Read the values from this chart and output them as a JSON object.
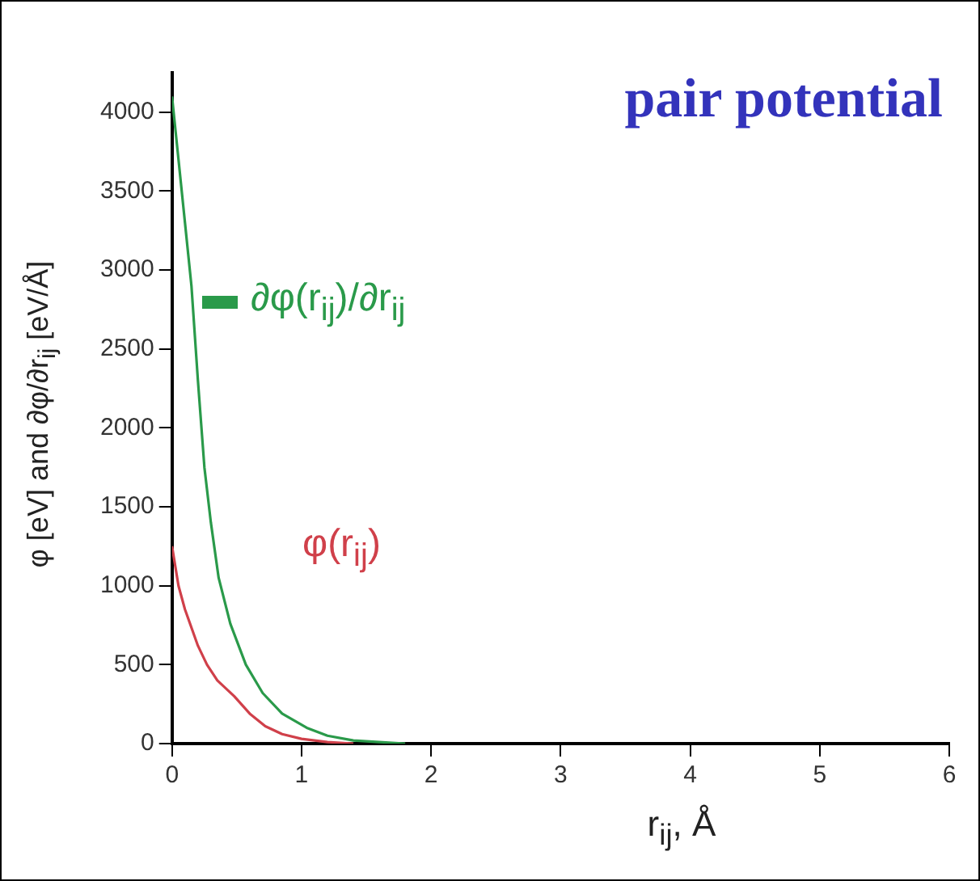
{
  "chart_data": {
    "type": "line",
    "title": "pair potential",
    "xlabel": "r$_{ij}$, Å",
    "ylabel": "φ [eV] and ∂φ/∂r$_{ij}$ [eV/Å]",
    "xlim": [
      0,
      6
    ],
    "xticks": [
      0,
      1,
      2,
      3,
      4,
      5,
      6
    ],
    "ylim": [
      0,
      4250
    ],
    "yticks": [
      0,
      500,
      1000,
      1500,
      2000,
      2500,
      3000,
      3500,
      4000
    ],
    "grid": false,
    "legend": "top left",
    "marker": "none",
    "line_style": "solid",
    "series": [
      {
        "name": "∂φ(r$_{ij}$)/∂r$_{ij}$",
        "color": "#2a9a4a",
        "x": [
          0,
          0.05,
          0.1,
          0.15,
          0.2,
          0.25,
          0.3,
          0.36,
          0.45,
          0.57,
          0.7,
          0.85,
          1.04,
          1.2,
          1.4,
          1.6,
          1.8
        ],
        "values": [
          4100,
          3700,
          3300,
          2900,
          2300,
          1750,
          1400,
          1050,
          760,
          500,
          320,
          190,
          100,
          50,
          20,
          10,
          0
        ]
      },
      {
        "name": "φ(r$_{ij}$)",
        "color": "#d0404a",
        "x": [
          0,
          0.05,
          0.1,
          0.2,
          0.27,
          0.35,
          0.48,
          0.6,
          0.72,
          0.85,
          1.0,
          1.2,
          1.4
        ],
        "values": [
          1250,
          1000,
          850,
          620,
          500,
          400,
          300,
          190,
          110,
          60,
          30,
          10,
          0
        ]
      }
    ]
  }
}
